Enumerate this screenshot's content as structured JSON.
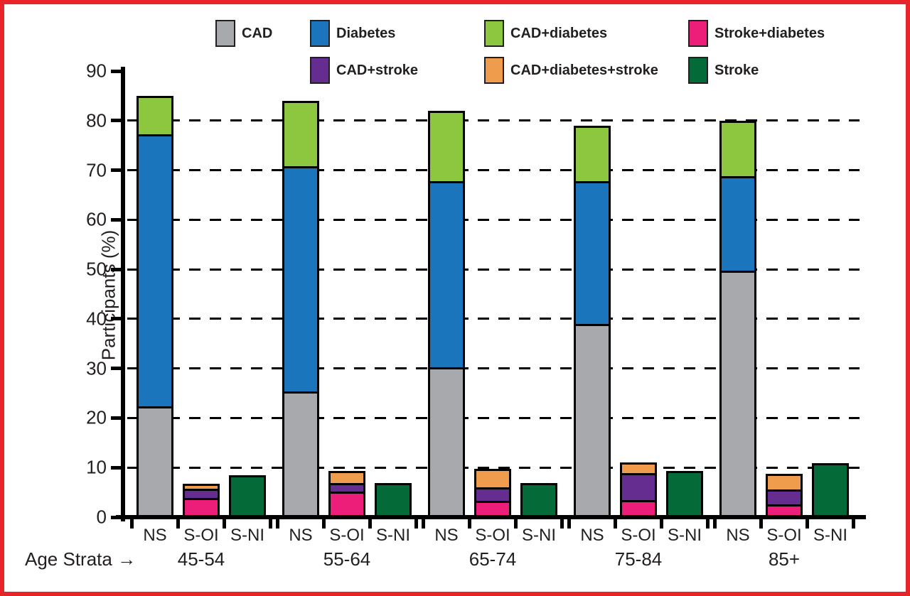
{
  "frame_color": "#e82329",
  "axis": {
    "ylabel": "Participants (%)",
    "age_strata_label": "Age Strata →"
  },
  "legend": {
    "items": [
      {
        "label": "CAD",
        "color": "#a7a9ac",
        "row": 0,
        "col": 0
      },
      {
        "label": "Diabetes",
        "color": "#1b75bc",
        "row": 0,
        "col": 1
      },
      {
        "label": "CAD+diabetes",
        "color": "#8dc63f",
        "row": 0,
        "col": 2
      },
      {
        "label": "Stroke+diabetes",
        "color": "#ed1e79",
        "row": 0,
        "col": 3
      },
      {
        "label": "CAD+stroke",
        "color": "#662d91",
        "row": 1,
        "col": 1
      },
      {
        "label": "CAD+diabetes+stroke",
        "color": "#ef9d4c",
        "row": 1,
        "col": 2
      },
      {
        "label": "Stroke",
        "color": "#046a38",
        "row": 1,
        "col": 3
      }
    ]
  },
  "chart_data": {
    "type": "bar",
    "subtype": "stacked-grouped",
    "title": "",
    "xlabel": "Age Strata",
    "ylabel": "Participants (%)",
    "ylim": [
      0,
      90
    ],
    "yticks": [
      0,
      10,
      20,
      30,
      40,
      50,
      60,
      70,
      80,
      90
    ],
    "gridlines": [
      10,
      20,
      30,
      40,
      50,
      60,
      70,
      80
    ],
    "grid_style": "dashed",
    "legend_position": "top",
    "bar_labels": [
      "NS",
      "S-OI",
      "S-NI"
    ],
    "categories": [
      "45-54",
      "55-64",
      "65-74",
      "75-84",
      "85+"
    ],
    "series": [
      {
        "name": "CAD",
        "color": "#a7a9ac"
      },
      {
        "name": "Diabetes",
        "color": "#1b75bc"
      },
      {
        "name": "CAD+diabetes",
        "color": "#8dc63f"
      },
      {
        "name": "Stroke+diabetes",
        "color": "#ed1e79"
      },
      {
        "name": "CAD+stroke",
        "color": "#662d91"
      },
      {
        "name": "CAD+diabetes+stroke",
        "color": "#ef9d4c"
      },
      {
        "name": "Stroke",
        "color": "#046a38"
      }
    ],
    "groups": [
      {
        "age": "45-54",
        "bars": [
          {
            "label": "NS",
            "segments": [
              {
                "series": "CAD",
                "value": 22
              },
              {
                "series": "Diabetes",
                "value": 55.5
              },
              {
                "series": "CAD+diabetes",
                "value": 7.5
              }
            ]
          },
          {
            "label": "S-OI",
            "segments": [
              {
                "series": "Stroke+diabetes",
                "value": 4
              },
              {
                "series": "CAD+stroke",
                "value": 2
              },
              {
                "series": "CAD+diabetes+stroke",
                "value": 0.8
              }
            ]
          },
          {
            "label": "S-NI",
            "segments": [
              {
                "series": "Stroke",
                "value": 8.4
              }
            ]
          }
        ]
      },
      {
        "age": "55-64",
        "bars": [
          {
            "label": "NS",
            "segments": [
              {
                "series": "CAD",
                "value": 25
              },
              {
                "series": "Diabetes",
                "value": 46
              },
              {
                "series": "CAD+diabetes",
                "value": 13
              }
            ]
          },
          {
            "label": "S-OI",
            "segments": [
              {
                "series": "Stroke+diabetes",
                "value": 5.3
              },
              {
                "series": "CAD+stroke",
                "value": 1.5
              },
              {
                "series": "CAD+diabetes+stroke",
                "value": 2.5
              }
            ]
          },
          {
            "label": "S-NI",
            "segments": [
              {
                "series": "Stroke",
                "value": 6.9
              }
            ]
          }
        ]
      },
      {
        "age": "65-74",
        "bars": [
          {
            "label": "NS",
            "segments": [
              {
                "series": "CAD",
                "value": 30
              },
              {
                "series": "Diabetes",
                "value": 38
              },
              {
                "series": "CAD+diabetes",
                "value": 14
              }
            ]
          },
          {
            "label": "S-OI",
            "segments": [
              {
                "series": "Stroke+diabetes",
                "value": 3
              },
              {
                "series": "CAD+stroke",
                "value": 2.7
              },
              {
                "series": "CAD+diabetes+stroke",
                "value": 4
              }
            ]
          },
          {
            "label": "S-NI",
            "segments": [
              {
                "series": "Stroke",
                "value": 6.9
              }
            ]
          }
        ]
      },
      {
        "age": "75-84",
        "bars": [
          {
            "label": "NS",
            "segments": [
              {
                "series": "CAD",
                "value": 39
              },
              {
                "series": "Diabetes",
                "value": 29
              },
              {
                "series": "CAD+diabetes",
                "value": 11
              }
            ]
          },
          {
            "label": "S-OI",
            "segments": [
              {
                "series": "Stroke+diabetes",
                "value": 3
              },
              {
                "series": "CAD+stroke",
                "value": 6
              },
              {
                "series": "CAD+diabetes+stroke",
                "value": 2
              }
            ]
          },
          {
            "label": "S-NI",
            "segments": [
              {
                "series": "Stroke",
                "value": 9.3
              }
            ]
          }
        ]
      },
      {
        "age": "85+",
        "bars": [
          {
            "label": "NS",
            "segments": [
              {
                "series": "CAD",
                "value": 50
              },
              {
                "series": "Diabetes",
                "value": 19
              },
              {
                "series": "CAD+diabetes",
                "value": 11
              }
            ]
          },
          {
            "label": "S-OI",
            "segments": [
              {
                "series": "Stroke+diabetes",
                "value": 2.2
              },
              {
                "series": "CAD+stroke",
                "value": 3.2
              },
              {
                "series": "CAD+diabetes+stroke",
                "value": 3.3
              }
            ]
          },
          {
            "label": "S-NI",
            "segments": [
              {
                "series": "Stroke",
                "value": 10.9
              }
            ]
          }
        ]
      }
    ]
  }
}
